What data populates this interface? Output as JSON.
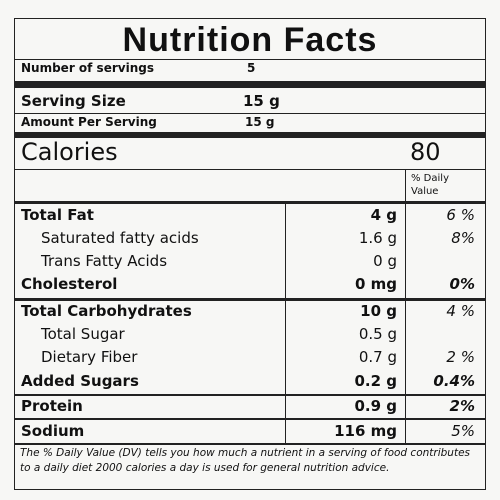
{
  "title": "Nutrition Facts",
  "servings": {
    "label": "Number of servings",
    "value": "5"
  },
  "serving_size": {
    "label": "Serving Size",
    "value": "15 g"
  },
  "amount_per_serving": {
    "label": "Amount Per Serving",
    "value": "15 g"
  },
  "calories": {
    "label": "Calories",
    "value": "80"
  },
  "dv_header": "% Daily Value",
  "rows": [
    {
      "name": "Total Fat",
      "amount": "4 g",
      "dv": "6 %"
    },
    {
      "name": "Saturated fatty acids",
      "amount": "1.6 g",
      "dv": "8%"
    },
    {
      "name": "Trans Fatty Acids",
      "amount": "0 g"
    },
    {
      "name": "Cholesterol",
      "amount": "0 mg",
      "dv": "0%"
    },
    {
      "name": "Total Carbohydrates",
      "amount": "10 g",
      "dv": "4 %"
    },
    {
      "name": "Total Sugar",
      "amount": "0.5 g"
    },
    {
      "name": "Dietary Fiber",
      "amount": "0.7 g",
      "dv": "2 %"
    },
    {
      "name": "Added Sugars",
      "amount": "0.2 g",
      "dv": "0.4%"
    },
    {
      "name": "Protein",
      "amount": "0.9 g",
      "dv": "2%"
    },
    {
      "name": "Sodium",
      "amount": "116 mg",
      "dv": "5%"
    }
  ],
  "footnote": "The % Daily Value (DV) tells you how much a nutrient in a serving of food contributes to a daily diet 2000 calories a day is used for general nutrition advice."
}
